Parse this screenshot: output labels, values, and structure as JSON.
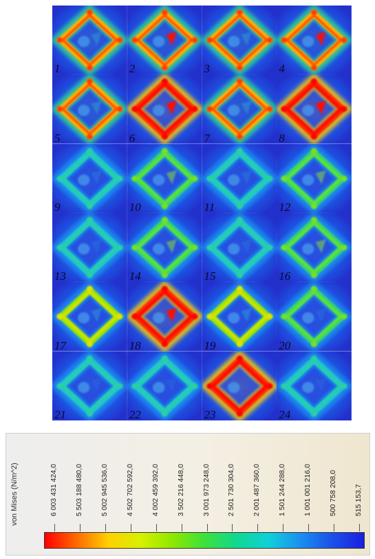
{
  "panels": [
    {
      "label": "1",
      "intensity": 0.78,
      "triangle": 0.35
    },
    {
      "label": "2",
      "intensity": 0.85,
      "triangle": 0.95
    },
    {
      "label": "3",
      "intensity": 0.78,
      "triangle": 0.35
    },
    {
      "label": "4",
      "intensity": 0.85,
      "triangle": 0.9
    },
    {
      "label": "5",
      "intensity": 0.75,
      "triangle": 0.35
    },
    {
      "label": "6",
      "intensity": 0.98,
      "triangle": 1.0
    },
    {
      "label": "7",
      "intensity": 0.75,
      "triangle": 0.35
    },
    {
      "label": "8",
      "intensity": 0.95,
      "triangle": 1.0
    },
    {
      "label": "9",
      "intensity": 0.42,
      "triangle": 0.2
    },
    {
      "label": "10",
      "intensity": 0.55,
      "triangle": 0.55
    },
    {
      "label": "11",
      "intensity": 0.42,
      "triangle": 0.2
    },
    {
      "label": "12",
      "intensity": 0.55,
      "triangle": 0.55
    },
    {
      "label": "13",
      "intensity": 0.38,
      "triangle": 0.15
    },
    {
      "label": "14",
      "intensity": 0.55,
      "triangle": 0.55
    },
    {
      "label": "15",
      "intensity": 0.38,
      "triangle": 0.15
    },
    {
      "label": "16",
      "intensity": 0.55,
      "triangle": 0.55
    },
    {
      "label": "17",
      "intensity": 0.62,
      "triangle": 0.35
    },
    {
      "label": "18",
      "intensity": 1.0,
      "triangle": 1.0
    },
    {
      "label": "19",
      "intensity": 0.62,
      "triangle": 0.35
    },
    {
      "label": "20",
      "intensity": 0.5,
      "triangle": 0.15
    },
    {
      "label": "21",
      "intensity": 0.45,
      "triangle": 0.1
    },
    {
      "label": "22",
      "intensity": 0.45,
      "triangle": 0.1
    },
    {
      "label": "23",
      "intensity": 1.0,
      "triangle": 0.0
    },
    {
      "label": "24",
      "intensity": 0.4,
      "triangle": 0.1
    }
  ],
  "legend": {
    "title": "von Mises (N/m^2)",
    "ticks": [
      "6 003 431 424,0",
      "5 503 188 480,0",
      "5 002 945 536,0",
      "4 502 702 592,0",
      "4 002 459 392,0",
      "3 502 216 448,0",
      "3 001 973 248,0",
      "2 501 730 304,0",
      "2 001 487 360,0",
      "1 501 244 288,0",
      "1 001 001 216,0",
      "500 758 208,0",
      "515 153,7"
    ],
    "colors": [
      "#ff0000",
      "#ff6a00",
      "#ffd000",
      "#d8f000",
      "#8ee800",
      "#3fe03a",
      "#10d890",
      "#10d0d8",
      "#1a90f0",
      "#1c50e8",
      "#1a20e0"
    ]
  }
}
